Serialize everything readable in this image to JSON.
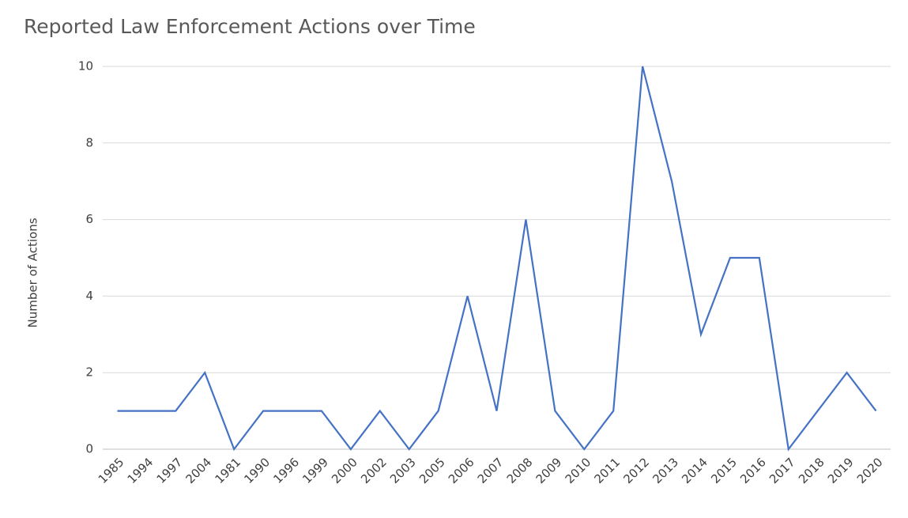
{
  "chart_data": {
    "type": "line",
    "title": "Reported Law Enforcement Actions over Time",
    "y_label": "Number of Actions",
    "categories": [
      "1985",
      "1994",
      "1997",
      "2004",
      "1981",
      "1990",
      "1996",
      "1999",
      "2000",
      "2002",
      "2003",
      "2005",
      "2006",
      "2007",
      "2008",
      "2009",
      "2010",
      "2011",
      "2012",
      "2013",
      "2014",
      "2015",
      "2016",
      "2017",
      "2018",
      "2019",
      "2020"
    ],
    "series": [
      {
        "name": "Number of Actions",
        "color": "#4472c4",
        "values": [
          1,
          1,
          1,
          2,
          0,
          1,
          1,
          1,
          0,
          1,
          0,
          1,
          4,
          1,
          6,
          1,
          0,
          1,
          10,
          7,
          3,
          5,
          5,
          0,
          1,
          2,
          1
        ]
      }
    ],
    "ylim": [
      0,
      10
    ],
    "yticks": [
      0,
      2,
      4,
      6,
      8,
      10
    ],
    "grid": true
  }
}
